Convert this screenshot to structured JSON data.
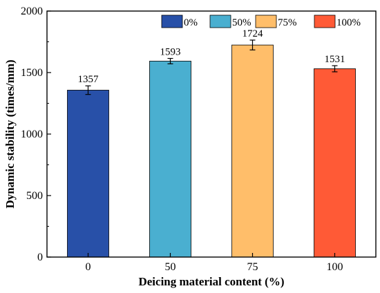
{
  "chart_data": {
    "type": "bar",
    "title": "",
    "xlabel": "Deicing material content (%)",
    "ylabel": "Dynamic stability (times/mm)",
    "categories": [
      "0",
      "50",
      "75",
      "100"
    ],
    "values": [
      1357,
      1593,
      1724,
      1531
    ],
    "value_labels": [
      "1357",
      "1593",
      "1724",
      "1531"
    ],
    "errors": [
      35,
      22,
      40,
      25
    ],
    "colors": [
      "#2850A8",
      "#4AAFD0",
      "#FFBE6A",
      "#FF5A36"
    ],
    "ylim": [
      0,
      2000
    ],
    "yticks": [
      "0",
      "500",
      "1000",
      "1500",
      "2000"
    ],
    "legend": {
      "placement": "top-right",
      "entries": [
        "0%",
        "50%",
        "75%",
        "100%"
      ]
    },
    "grid": false
  }
}
